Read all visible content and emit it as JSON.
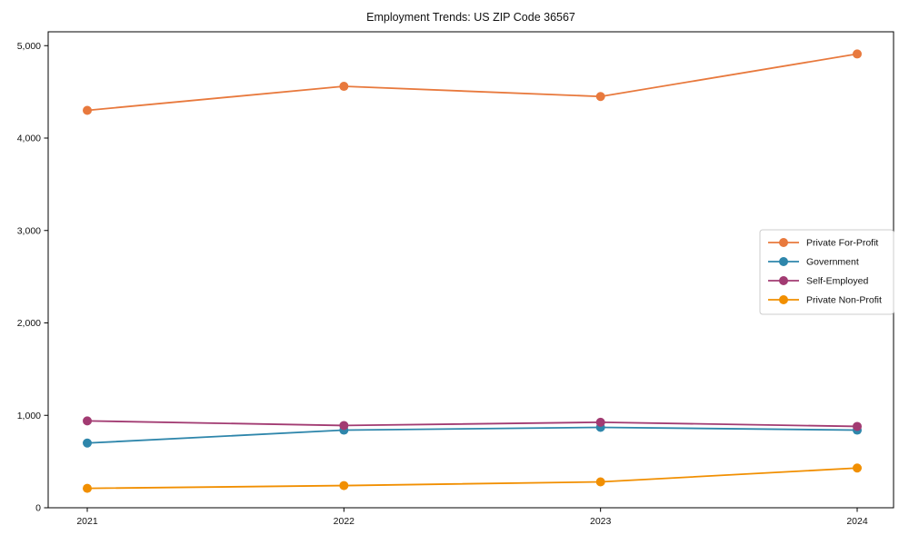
{
  "chart_data": {
    "type": "line",
    "title": "Employment Trends: US ZIP Code 36567",
    "categories": [
      "2021",
      "2022",
      "2023",
      "2024"
    ],
    "series": [
      {
        "name": "Private For-Profit",
        "color": "#E8793D",
        "values": [
          4300,
          4560,
          4450,
          4910
        ]
      },
      {
        "name": "Government",
        "color": "#2E86AB",
        "values": [
          700,
          840,
          870,
          840
        ]
      },
      {
        "name": "Self-Employed",
        "color": "#A23B72",
        "values": [
          940,
          890,
          925,
          880
        ]
      },
      {
        "name": "Private Non-Profit",
        "color": "#F18F01",
        "values": [
          210,
          240,
          280,
          430
        ]
      }
    ],
    "xlabel": "",
    "ylabel": "",
    "ylim": [
      0,
      5150
    ],
    "yticks": [
      0,
      1000,
      2000,
      3000,
      4000,
      5000
    ],
    "ytick_labels": [
      "0",
      "1,000",
      "2,000",
      "3,000",
      "4,000",
      "5,000"
    ],
    "grid": false,
    "legend_position": "center-right",
    "colors": {
      "background": "#ffffff",
      "spine": "#000000",
      "text": "#111111",
      "legend_border": "#cccccc",
      "legend_background": "#ffffff"
    }
  }
}
